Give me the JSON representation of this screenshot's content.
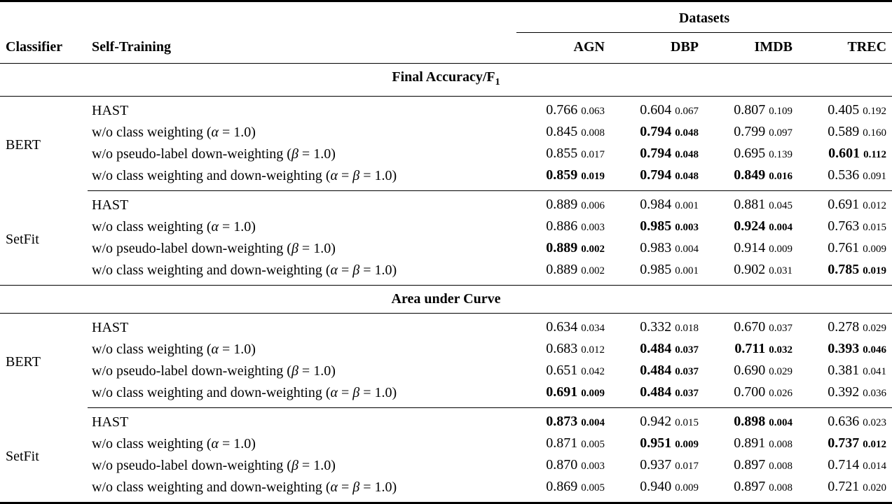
{
  "header": {
    "classifier": "Classifier",
    "self_training": "Self-Training",
    "datasets_group": "Datasets",
    "dataset_columns": [
      "AGN",
      "DBP",
      "IMDB",
      "TREC"
    ]
  },
  "sections": [
    {
      "title": "Final Accuracy/F",
      "title_sub": "1",
      "groups": [
        {
          "classifier": "BERT",
          "rows": [
            {
              "label": "HAST",
              "cells": [
                {
                  "value": "0.766",
                  "std": "0.063",
                  "bold": false
                },
                {
                  "value": "0.604",
                  "std": "0.067",
                  "bold": false
                },
                {
                  "value": "0.807",
                  "std": "0.109",
                  "bold": false
                },
                {
                  "value": "0.405",
                  "std": "0.192",
                  "bold": false
                }
              ]
            },
            {
              "label": "w/o class weighting (α = 1.0)",
              "cells": [
                {
                  "value": "0.845",
                  "std": "0.008",
                  "bold": false
                },
                {
                  "value": "0.794",
                  "std": "0.048",
                  "bold": true
                },
                {
                  "value": "0.799",
                  "std": "0.097",
                  "bold": false
                },
                {
                  "value": "0.589",
                  "std": "0.160",
                  "bold": false
                }
              ]
            },
            {
              "label": "w/o pseudo-label down-weighting (β = 1.0)",
              "cells": [
                {
                  "value": "0.855",
                  "std": "0.017",
                  "bold": false
                },
                {
                  "value": "0.794",
                  "std": "0.048",
                  "bold": true
                },
                {
                  "value": "0.695",
                  "std": "0.139",
                  "bold": false
                },
                {
                  "value": "0.601",
                  "std": "0.112",
                  "bold": true
                }
              ]
            },
            {
              "label": "w/o class weighting and down-weighting (α = β = 1.0)",
              "cells": [
                {
                  "value": "0.859",
                  "std": "0.019",
                  "bold": true
                },
                {
                  "value": "0.794",
                  "std": "0.048",
                  "bold": true
                },
                {
                  "value": "0.849",
                  "std": "0.016",
                  "bold": true
                },
                {
                  "value": "0.536",
                  "std": "0.091",
                  "bold": false
                }
              ]
            }
          ]
        },
        {
          "classifier": "SetFit",
          "rows": [
            {
              "label": "HAST",
              "cells": [
                {
                  "value": "0.889",
                  "std": "0.006",
                  "bold": false
                },
                {
                  "value": "0.984",
                  "std": "0.001",
                  "bold": false
                },
                {
                  "value": "0.881",
                  "std": "0.045",
                  "bold": false
                },
                {
                  "value": "0.691",
                  "std": "0.012",
                  "bold": false
                }
              ]
            },
            {
              "label": "w/o class weighting (α = 1.0)",
              "cells": [
                {
                  "value": "0.886",
                  "std": "0.003",
                  "bold": false
                },
                {
                  "value": "0.985",
                  "std": "0.003",
                  "bold": true
                },
                {
                  "value": "0.924",
                  "std": "0.004",
                  "bold": true
                },
                {
                  "value": "0.763",
                  "std": "0.015",
                  "bold": false
                }
              ]
            },
            {
              "label": "w/o pseudo-label down-weighting (β = 1.0)",
              "cells": [
                {
                  "value": "0.889",
                  "std": "0.002",
                  "bold": true
                },
                {
                  "value": "0.983",
                  "std": "0.004",
                  "bold": false
                },
                {
                  "value": "0.914",
                  "std": "0.009",
                  "bold": false
                },
                {
                  "value": "0.761",
                  "std": "0.009",
                  "bold": false
                }
              ]
            },
            {
              "label": "w/o class weighting and down-weighting (α = β = 1.0)",
              "cells": [
                {
                  "value": "0.889",
                  "std": "0.002",
                  "bold": false
                },
                {
                  "value": "0.985",
                  "std": "0.001",
                  "bold": false
                },
                {
                  "value": "0.902",
                  "std": "0.031",
                  "bold": false
                },
                {
                  "value": "0.785",
                  "std": "0.019",
                  "bold": true
                }
              ]
            }
          ]
        }
      ]
    },
    {
      "title": "Area under Curve",
      "title_sub": "",
      "groups": [
        {
          "classifier": "BERT",
          "rows": [
            {
              "label": "HAST",
              "cells": [
                {
                  "value": "0.634",
                  "std": "0.034",
                  "bold": false
                },
                {
                  "value": "0.332",
                  "std": "0.018",
                  "bold": false
                },
                {
                  "value": "0.670",
                  "std": "0.037",
                  "bold": false
                },
                {
                  "value": "0.278",
                  "std": "0.029",
                  "bold": false
                }
              ]
            },
            {
              "label": "w/o class weighting (α = 1.0)",
              "cells": [
                {
                  "value": "0.683",
                  "std": "0.012",
                  "bold": false
                },
                {
                  "value": "0.484",
                  "std": "0.037",
                  "bold": true
                },
                {
                  "value": "0.711",
                  "std": "0.032",
                  "bold": true
                },
                {
                  "value": "0.393",
                  "std": "0.046",
                  "bold": true
                }
              ]
            },
            {
              "label": "w/o pseudo-label down-weighting (β = 1.0)",
              "cells": [
                {
                  "value": "0.651",
                  "std": "0.042",
                  "bold": false
                },
                {
                  "value": "0.484",
                  "std": "0.037",
                  "bold": true
                },
                {
                  "value": "0.690",
                  "std": "0.029",
                  "bold": false
                },
                {
                  "value": "0.381",
                  "std": "0.041",
                  "bold": false
                }
              ]
            },
            {
              "label": "w/o class weighting and down-weighting (α = β = 1.0)",
              "cells": [
                {
                  "value": "0.691",
                  "std": "0.009",
                  "bold": true
                },
                {
                  "value": "0.484",
                  "std": "0.037",
                  "bold": true
                },
                {
                  "value": "0.700",
                  "std": "0.026",
                  "bold": false
                },
                {
                  "value": "0.392",
                  "std": "0.036",
                  "bold": false
                }
              ]
            }
          ]
        },
        {
          "classifier": "SetFit",
          "rows": [
            {
              "label": "HAST",
              "cells": [
                {
                  "value": "0.873",
                  "std": "0.004",
                  "bold": true
                },
                {
                  "value": "0.942",
                  "std": "0.015",
                  "bold": false
                },
                {
                  "value": "0.898",
                  "std": "0.004",
                  "bold": true
                },
                {
                  "value": "0.636",
                  "std": "0.023",
                  "bold": false
                }
              ]
            },
            {
              "label": "w/o class weighting (α = 1.0)",
              "cells": [
                {
                  "value": "0.871",
                  "std": "0.005",
                  "bold": false
                },
                {
                  "value": "0.951",
                  "std": "0.009",
                  "bold": true
                },
                {
                  "value": "0.891",
                  "std": "0.008",
                  "bold": false
                },
                {
                  "value": "0.737",
                  "std": "0.012",
                  "bold": true
                }
              ]
            },
            {
              "label": "w/o pseudo-label down-weighting (β = 1.0)",
              "cells": [
                {
                  "value": "0.870",
                  "std": "0.003",
                  "bold": false
                },
                {
                  "value": "0.937",
                  "std": "0.017",
                  "bold": false
                },
                {
                  "value": "0.897",
                  "std": "0.008",
                  "bold": false
                },
                {
                  "value": "0.714",
                  "std": "0.014",
                  "bold": false
                }
              ]
            },
            {
              "label": "w/o class weighting and down-weighting (α = β = 1.0)",
              "cells": [
                {
                  "value": "0.869",
                  "std": "0.005",
                  "bold": false
                },
                {
                  "value": "0.940",
                  "std": "0.009",
                  "bold": false
                },
                {
                  "value": "0.897",
                  "std": "0.008",
                  "bold": false
                },
                {
                  "value": "0.721",
                  "std": "0.020",
                  "bold": false
                }
              ]
            }
          ]
        }
      ]
    }
  ]
}
